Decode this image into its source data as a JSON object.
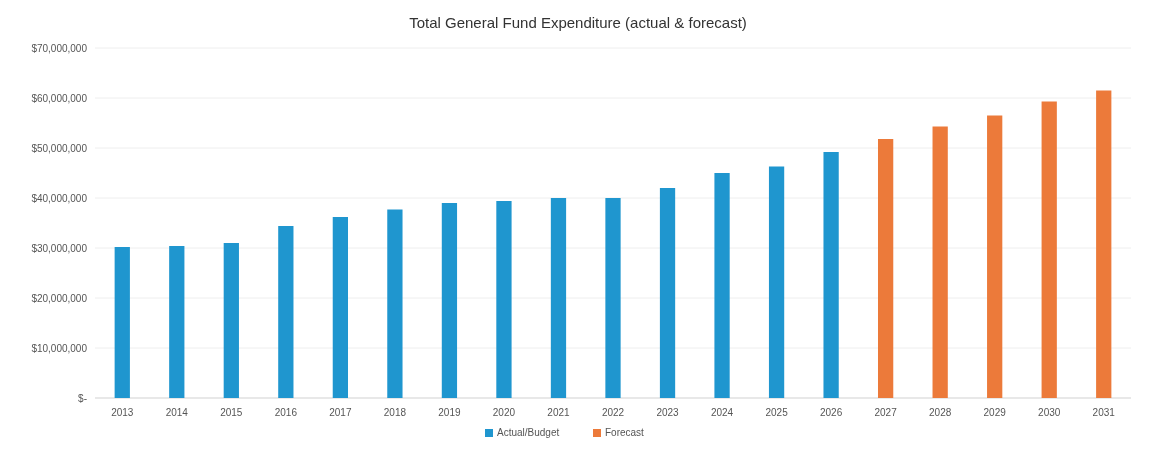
{
  "chart_data": {
    "type": "bar",
    "title": "Total General Fund Expenditure (actual & forecast)",
    "categories": [
      "2013",
      "2014",
      "2015",
      "2016",
      "2017",
      "2018",
      "2019",
      "2020",
      "2021",
      "2022",
      "2023",
      "2024",
      "2025",
      "2026",
      "2027",
      "2028",
      "2029",
      "2030",
      "2031"
    ],
    "series": [
      {
        "name": "Actual/Budget",
        "color": "#1f96cf",
        "values": [
          30200000,
          30400000,
          31000000,
          34400000,
          36200000,
          37700000,
          39000000,
          39400000,
          40000000,
          40000000,
          42000000,
          45000000,
          46300000,
          49200000,
          null,
          null,
          null,
          null,
          null
        ]
      },
      {
        "name": "Forecast",
        "color": "#ec7a3a",
        "values": [
          null,
          null,
          null,
          null,
          null,
          null,
          null,
          null,
          null,
          null,
          null,
          null,
          null,
          null,
          51800000,
          54300000,
          56500000,
          59300000,
          61500000
        ]
      }
    ],
    "stacked": true,
    "ylim": [
      0,
      70000000
    ],
    "yticks": [
      {
        "value": 0,
        "label": "$-"
      },
      {
        "value": 10000000,
        "label": "$10,000,000"
      },
      {
        "value": 20000000,
        "label": "$20,000,000"
      },
      {
        "value": 30000000,
        "label": "$30,000,000"
      },
      {
        "value": 40000000,
        "label": "$40,000,000"
      },
      {
        "value": 50000000,
        "label": "$50,000,000"
      },
      {
        "value": 60000000,
        "label": "$60,000,000"
      },
      {
        "value": 70000000,
        "label": "$70,000,000"
      }
    ],
    "grid": "y",
    "legend": "bottom"
  }
}
